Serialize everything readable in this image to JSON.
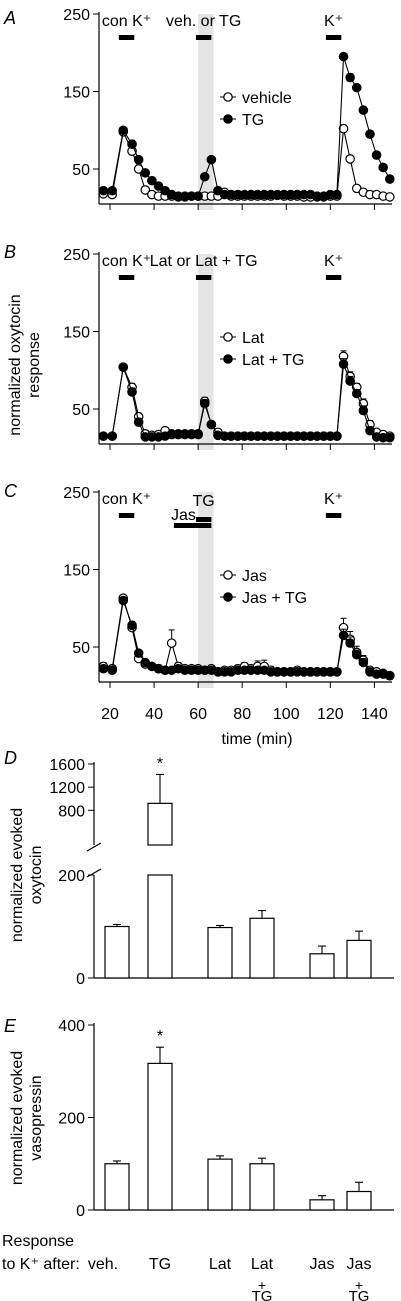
{
  "common": {
    "time_xlabel": "time (min)",
    "time_ticks": [
      20,
      40,
      60,
      80,
      100,
      120,
      140
    ],
    "ylabel_abc": [
      "normalized oxytocin",
      "response"
    ],
    "bottom_row_label": [
      "Response",
      "to K⁺ after:"
    ],
    "category_labels": [
      "veh.",
      "TG",
      "Lat",
      "Lat",
      "Jas",
      "Jas"
    ],
    "category_plus": [
      "+",
      "+"
    ],
    "category_tg": [
      "TG",
      "TG"
    ]
  },
  "chart_data": [
    {
      "panel": "A",
      "type": "line",
      "xlim": [
        15,
        148
      ],
      "ylim": [
        10,
        250
      ],
      "yticks": [
        50,
        150,
        250
      ],
      "bars": [
        {
          "label": "con K⁺",
          "x": [
            24,
            31
          ]
        },
        {
          "label": "veh. or TG",
          "x": [
            59,
            66
          ]
        },
        {
          "label": "K⁺",
          "x": [
            118,
            125
          ]
        }
      ],
      "shade_x": [
        60,
        67
      ],
      "series": [
        {
          "name": "vehicle",
          "marker": "open",
          "x": [
            17,
            21,
            26,
            30,
            33,
            36,
            39,
            42,
            45,
            48,
            51,
            54,
            57,
            60,
            63,
            66,
            69,
            72,
            75,
            78,
            81,
            84,
            87,
            90,
            93,
            96,
            99,
            102,
            105,
            108,
            111,
            114,
            117,
            120,
            123,
            126,
            129,
            132,
            135,
            138,
            141,
            144,
            147
          ],
          "y": [
            18,
            17,
            98,
            73,
            50,
            23,
            17,
            15,
            15,
            15,
            14,
            14,
            15,
            15,
            15,
            15,
            15,
            20,
            15,
            15,
            15,
            15,
            15,
            15,
            15,
            16,
            15,
            15,
            15,
            14,
            14,
            14,
            14,
            15,
            15,
            102,
            63,
            25,
            20,
            17,
            17,
            15,
            14
          ],
          "err": [
            2,
            2,
            3,
            5,
            5,
            2,
            2,
            2,
            2,
            2,
            2,
            2,
            2,
            2,
            2,
            2,
            2,
            2,
            2,
            2,
            2,
            2,
            2,
            2,
            2,
            2,
            2,
            2,
            2,
            2,
            2,
            2,
            2,
            2,
            2,
            5,
            4,
            2,
            2,
            2,
            2,
            2,
            2
          ]
        },
        {
          "name": "TG",
          "marker": "filled",
          "x": [
            17,
            21,
            26,
            30,
            33,
            36,
            39,
            42,
            45,
            48,
            51,
            54,
            57,
            60,
            63,
            66,
            69,
            72,
            75,
            78,
            81,
            84,
            87,
            90,
            93,
            96,
            99,
            102,
            105,
            108,
            111,
            114,
            117,
            120,
            123,
            126,
            129,
            132,
            135,
            138,
            141,
            144,
            147
          ],
          "y": [
            22,
            22,
            100,
            82,
            62,
            45,
            35,
            28,
            22,
            17,
            15,
            15,
            15,
            15,
            40,
            62,
            22,
            17,
            17,
            17,
            17,
            17,
            17,
            17,
            17,
            17,
            17,
            17,
            17,
            17,
            17,
            15,
            15,
            17,
            17,
            195,
            168,
            155,
            126,
            95,
            68,
            52,
            37
          ],
          "err": [
            2,
            2,
            3,
            5,
            4,
            3,
            2,
            2,
            2,
            2,
            2,
            2,
            2,
            2,
            3,
            3,
            2,
            2,
            2,
            2,
            2,
            2,
            2,
            2,
            2,
            2,
            2,
            2,
            2,
            2,
            2,
            2,
            2,
            2,
            2,
            4,
            5,
            4,
            3,
            3,
            3,
            3,
            2
          ]
        }
      ]
    },
    {
      "panel": "B",
      "type": "line",
      "xlim": [
        15,
        148
      ],
      "ylim": [
        10,
        250
      ],
      "yticks": [
        50,
        150,
        250
      ],
      "bars": [
        {
          "label": "con K⁺",
          "x": [
            24,
            31
          ]
        },
        {
          "label": "Lat or Lat + TG",
          "x": [
            59,
            66
          ]
        },
        {
          "label": "K⁺",
          "x": [
            118,
            125
          ]
        }
      ],
      "shade_x": [
        60,
        67
      ],
      "series": [
        {
          "name": "Lat",
          "marker": "open",
          "x": [
            17,
            21,
            26,
            30,
            33,
            36,
            39,
            42,
            45,
            48,
            51,
            54,
            57,
            60,
            63,
            66,
            69,
            72,
            75,
            78,
            81,
            84,
            87,
            90,
            93,
            96,
            99,
            102,
            105,
            108,
            111,
            114,
            117,
            120,
            123,
            126,
            129,
            132,
            135,
            138,
            141,
            144,
            147
          ],
          "y": [
            15,
            15,
            104,
            78,
            40,
            18,
            16,
            17,
            22,
            18,
            18,
            18,
            18,
            18,
            60,
            30,
            20,
            15,
            15,
            15,
            15,
            15,
            15,
            15,
            15,
            15,
            15,
            15,
            15,
            15,
            15,
            15,
            15,
            15,
            15,
            118,
            92,
            78,
            57,
            30,
            20,
            17,
            15
          ],
          "err": [
            2,
            2,
            3,
            5,
            5,
            3,
            2,
            2,
            4,
            3,
            3,
            3,
            3,
            3,
            5,
            4,
            3,
            2,
            2,
            2,
            2,
            2,
            2,
            2,
            2,
            2,
            2,
            2,
            2,
            2,
            2,
            2,
            2,
            2,
            2,
            7,
            6,
            5,
            6,
            5,
            3,
            2,
            2
          ]
        },
        {
          "name": "Lat + TG",
          "marker": "filled",
          "x": [
            17,
            21,
            26,
            30,
            33,
            36,
            39,
            42,
            45,
            48,
            51,
            54,
            57,
            60,
            63,
            66,
            69,
            72,
            75,
            78,
            81,
            84,
            87,
            90,
            93,
            96,
            99,
            102,
            105,
            108,
            111,
            114,
            117,
            120,
            123,
            126,
            129,
            132,
            135,
            138,
            141,
            144,
            147
          ],
          "y": [
            15,
            15,
            104,
            72,
            33,
            14,
            14,
            14,
            15,
            17,
            17,
            17,
            17,
            17,
            57,
            30,
            16,
            15,
            15,
            15,
            15,
            15,
            15,
            15,
            15,
            15,
            15,
            15,
            15,
            15,
            15,
            15,
            15,
            15,
            15,
            108,
            86,
            70,
            48,
            22,
            14,
            13,
            13
          ],
          "err": [
            2,
            2,
            3,
            5,
            5,
            3,
            2,
            2,
            3,
            3,
            3,
            3,
            3,
            3,
            5,
            4,
            3,
            2,
            2,
            2,
            2,
            2,
            2,
            2,
            2,
            2,
            2,
            2,
            2,
            2,
            2,
            2,
            2,
            2,
            2,
            7,
            6,
            5,
            6,
            5,
            3,
            2,
            2
          ]
        }
      ]
    },
    {
      "panel": "C",
      "type": "line",
      "xlim": [
        15,
        148
      ],
      "ylim": [
        10,
        250
      ],
      "yticks": [
        50,
        150,
        250
      ],
      "bars": [
        {
          "label": "con K⁺",
          "x": [
            24,
            31
          ]
        },
        {
          "label": "Jas",
          "x": [
            49,
            66
          ]
        },
        {
          "label": "TG",
          "x": [
            59,
            66
          ]
        },
        {
          "label": "K⁺",
          "x": [
            118,
            125
          ]
        }
      ],
      "shade_x": [
        60,
        67
      ],
      "series": [
        {
          "name": "Jas",
          "marker": "open",
          "x": [
            17,
            21,
            26,
            30,
            33,
            36,
            39,
            42,
            45,
            48,
            51,
            54,
            57,
            60,
            63,
            66,
            69,
            72,
            75,
            78,
            81,
            84,
            87,
            90,
            93,
            96,
            99,
            102,
            105,
            108,
            111,
            114,
            117,
            120,
            123,
            126,
            129,
            132,
            135,
            138,
            141,
            144,
            147
          ],
          "y": [
            25,
            22,
            113,
            75,
            35,
            28,
            25,
            22,
            20,
            55,
            25,
            22,
            22,
            22,
            20,
            22,
            18,
            20,
            20,
            22,
            25,
            22,
            25,
            25,
            20,
            18,
            18,
            18,
            20,
            18,
            18,
            18,
            18,
            18,
            18,
            75,
            60,
            43,
            33,
            20,
            18,
            16,
            13
          ],
          "err": [
            5,
            3,
            3,
            6,
            5,
            5,
            4,
            5,
            4,
            17,
            5,
            4,
            4,
            4,
            3,
            4,
            4,
            4,
            4,
            4,
            5,
            4,
            7,
            8,
            5,
            4,
            3,
            3,
            3,
            3,
            3,
            3,
            3,
            3,
            3,
            12,
            10,
            8,
            6,
            4,
            3,
            2,
            2
          ]
        },
        {
          "name": "Jas + TG",
          "marker": "filled",
          "x": [
            17,
            21,
            26,
            30,
            33,
            36,
            39,
            42,
            45,
            48,
            51,
            54,
            57,
            60,
            63,
            66,
            69,
            72,
            75,
            78,
            81,
            84,
            87,
            90,
            93,
            96,
            99,
            102,
            105,
            108,
            111,
            114,
            117,
            120,
            123,
            126,
            129,
            132,
            135,
            138,
            141,
            144,
            147
          ],
          "y": [
            22,
            20,
            110,
            78,
            42,
            30,
            25,
            22,
            20,
            20,
            22,
            20,
            20,
            20,
            20,
            20,
            18,
            18,
            18,
            20,
            20,
            20,
            20,
            20,
            18,
            18,
            18,
            18,
            18,
            18,
            18,
            18,
            18,
            18,
            18,
            65,
            55,
            40,
            30,
            18,
            15,
            15,
            13
          ],
          "err": [
            3,
            3,
            3,
            5,
            4,
            4,
            3,
            3,
            3,
            3,
            3,
            3,
            3,
            3,
            3,
            3,
            3,
            3,
            3,
            3,
            3,
            3,
            3,
            3,
            3,
            3,
            3,
            3,
            3,
            3,
            3,
            3,
            3,
            3,
            3,
            8,
            8,
            6,
            5,
            3,
            3,
            2,
            2
          ]
        }
      ]
    },
    {
      "panel": "D",
      "type": "bar",
      "ylabel": [
        "normalized evoked",
        "oxytocin"
      ],
      "y_broken": true,
      "ylim_lower": [
        0,
        200
      ],
      "ylim_upper": [
        200,
        1600
      ],
      "yticks": [
        0,
        200,
        800,
        1200,
        1600
      ],
      "values": [
        100,
        920,
        98,
        116,
        47,
        73
      ],
      "errors": [
        4,
        500,
        4,
        15,
        15,
        18
      ],
      "significant": [
        false,
        true,
        false,
        false,
        false,
        false
      ],
      "asterisk": "*"
    },
    {
      "panel": "E",
      "type": "bar",
      "ylabel": [
        "normalized evoked",
        "vasopressin"
      ],
      "ylim": [
        0,
        400
      ],
      "yticks": [
        0,
        200,
        400
      ],
      "values": [
        100,
        317,
        110,
        100,
        22,
        40
      ],
      "errors": [
        6,
        35,
        7,
        12,
        9,
        20
      ],
      "significant": [
        false,
        true,
        false,
        false,
        false,
        false
      ],
      "asterisk": "*"
    }
  ]
}
